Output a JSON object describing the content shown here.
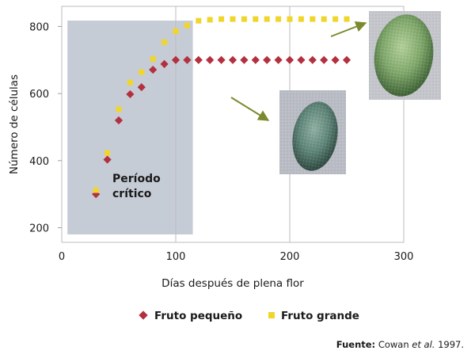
{
  "chart_data": {
    "type": "scatter",
    "title": "",
    "xlabel": "Días después de plena flor",
    "ylabel": "Número de células",
    "xlim": [
      0,
      300
    ],
    "ylim": [
      180,
      860
    ],
    "x_ticks": [
      0,
      100,
      200,
      300
    ],
    "y_ticks": [
      200,
      400,
      600,
      800
    ],
    "grid": "vertical",
    "legend_position": "bottom",
    "series": [
      {
        "name": "Fruto pequeño",
        "marker": "diamond",
        "color": "#b3303e",
        "x": [
          30,
          40,
          50,
          60,
          70,
          80,
          90,
          100,
          110,
          120,
          130,
          140,
          150,
          160,
          170,
          180,
          190,
          200,
          210,
          220,
          230,
          240,
          250
        ],
        "y": [
          300,
          403,
          520,
          598,
          619,
          671,
          688,
          700,
          700,
          700,
          700,
          700,
          700,
          700,
          700,
          700,
          700,
          700,
          700,
          700,
          700,
          700,
          700
        ]
      },
      {
        "name": "Fruto grande",
        "marker": "square",
        "color": "#f0d52a",
        "x": [
          30,
          40,
          50,
          60,
          70,
          80,
          90,
          100,
          110,
          120,
          130,
          140,
          150,
          160,
          170,
          180,
          190,
          200,
          210,
          220,
          230,
          240,
          250
        ],
        "y": [
          312,
          423,
          553,
          633,
          664,
          703,
          753,
          786,
          803,
          817,
          820,
          822,
          822,
          822,
          822,
          822,
          822,
          822,
          822,
          822,
          822,
          822,
          822
        ]
      }
    ],
    "shaded_region": {
      "x": [
        5,
        115
      ],
      "label_line1": "Período",
      "label_line2": "crítico",
      "color": "#c6ccd6"
    },
    "annotations": [
      {
        "type": "photo",
        "subject": "small-avocado",
        "arrow_to_series": "Fruto pequeño"
      },
      {
        "type": "photo",
        "subject": "large-avocado",
        "arrow_to_series": "Fruto grande"
      }
    ],
    "arrow_color": "#7a8a2e"
  },
  "source": {
    "label": "Fuente:",
    "authors": "Cowan ",
    "etal": "et al.",
    "year": " 1997."
  }
}
